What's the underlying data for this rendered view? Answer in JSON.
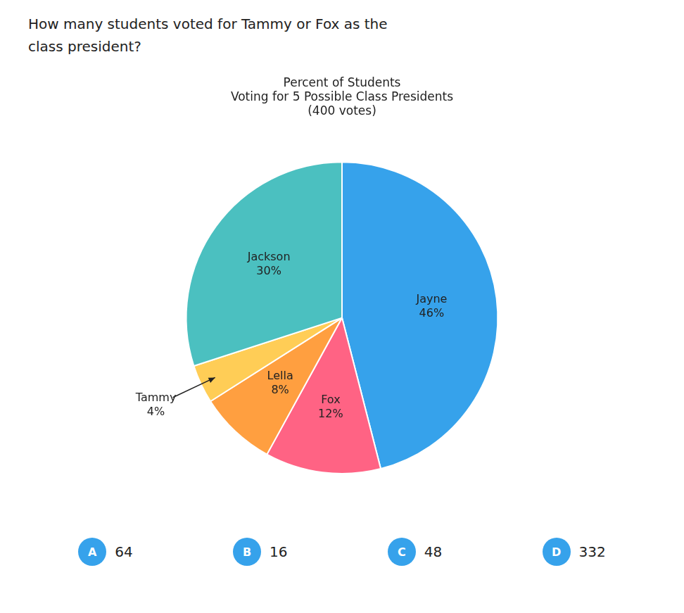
{
  "chart_data": {
    "type": "pie",
    "title": "Percent of Students\nVoting for 5 Possible Class Presidents\n(400 votes)",
    "categories": [
      "Jayne",
      "Fox",
      "Lella",
      "Tammy",
      "Jackson"
    ],
    "values": [
      46,
      12,
      8,
      4,
      30
    ],
    "value_labels": [
      "46%",
      "12%",
      "8%",
      "4%",
      "30%"
    ],
    "data_labels": true,
    "annotations": {
      "question": "How many students voted for Tammy or Fox as the\nclass president?",
      "answers": [
        {
          "letter": "A",
          "value": "64"
        },
        {
          "letter": "B",
          "value": "16"
        },
        {
          "letter": "C",
          "value": "48"
        },
        {
          "letter": "D",
          "value": "332"
        }
      ]
    }
  }
}
